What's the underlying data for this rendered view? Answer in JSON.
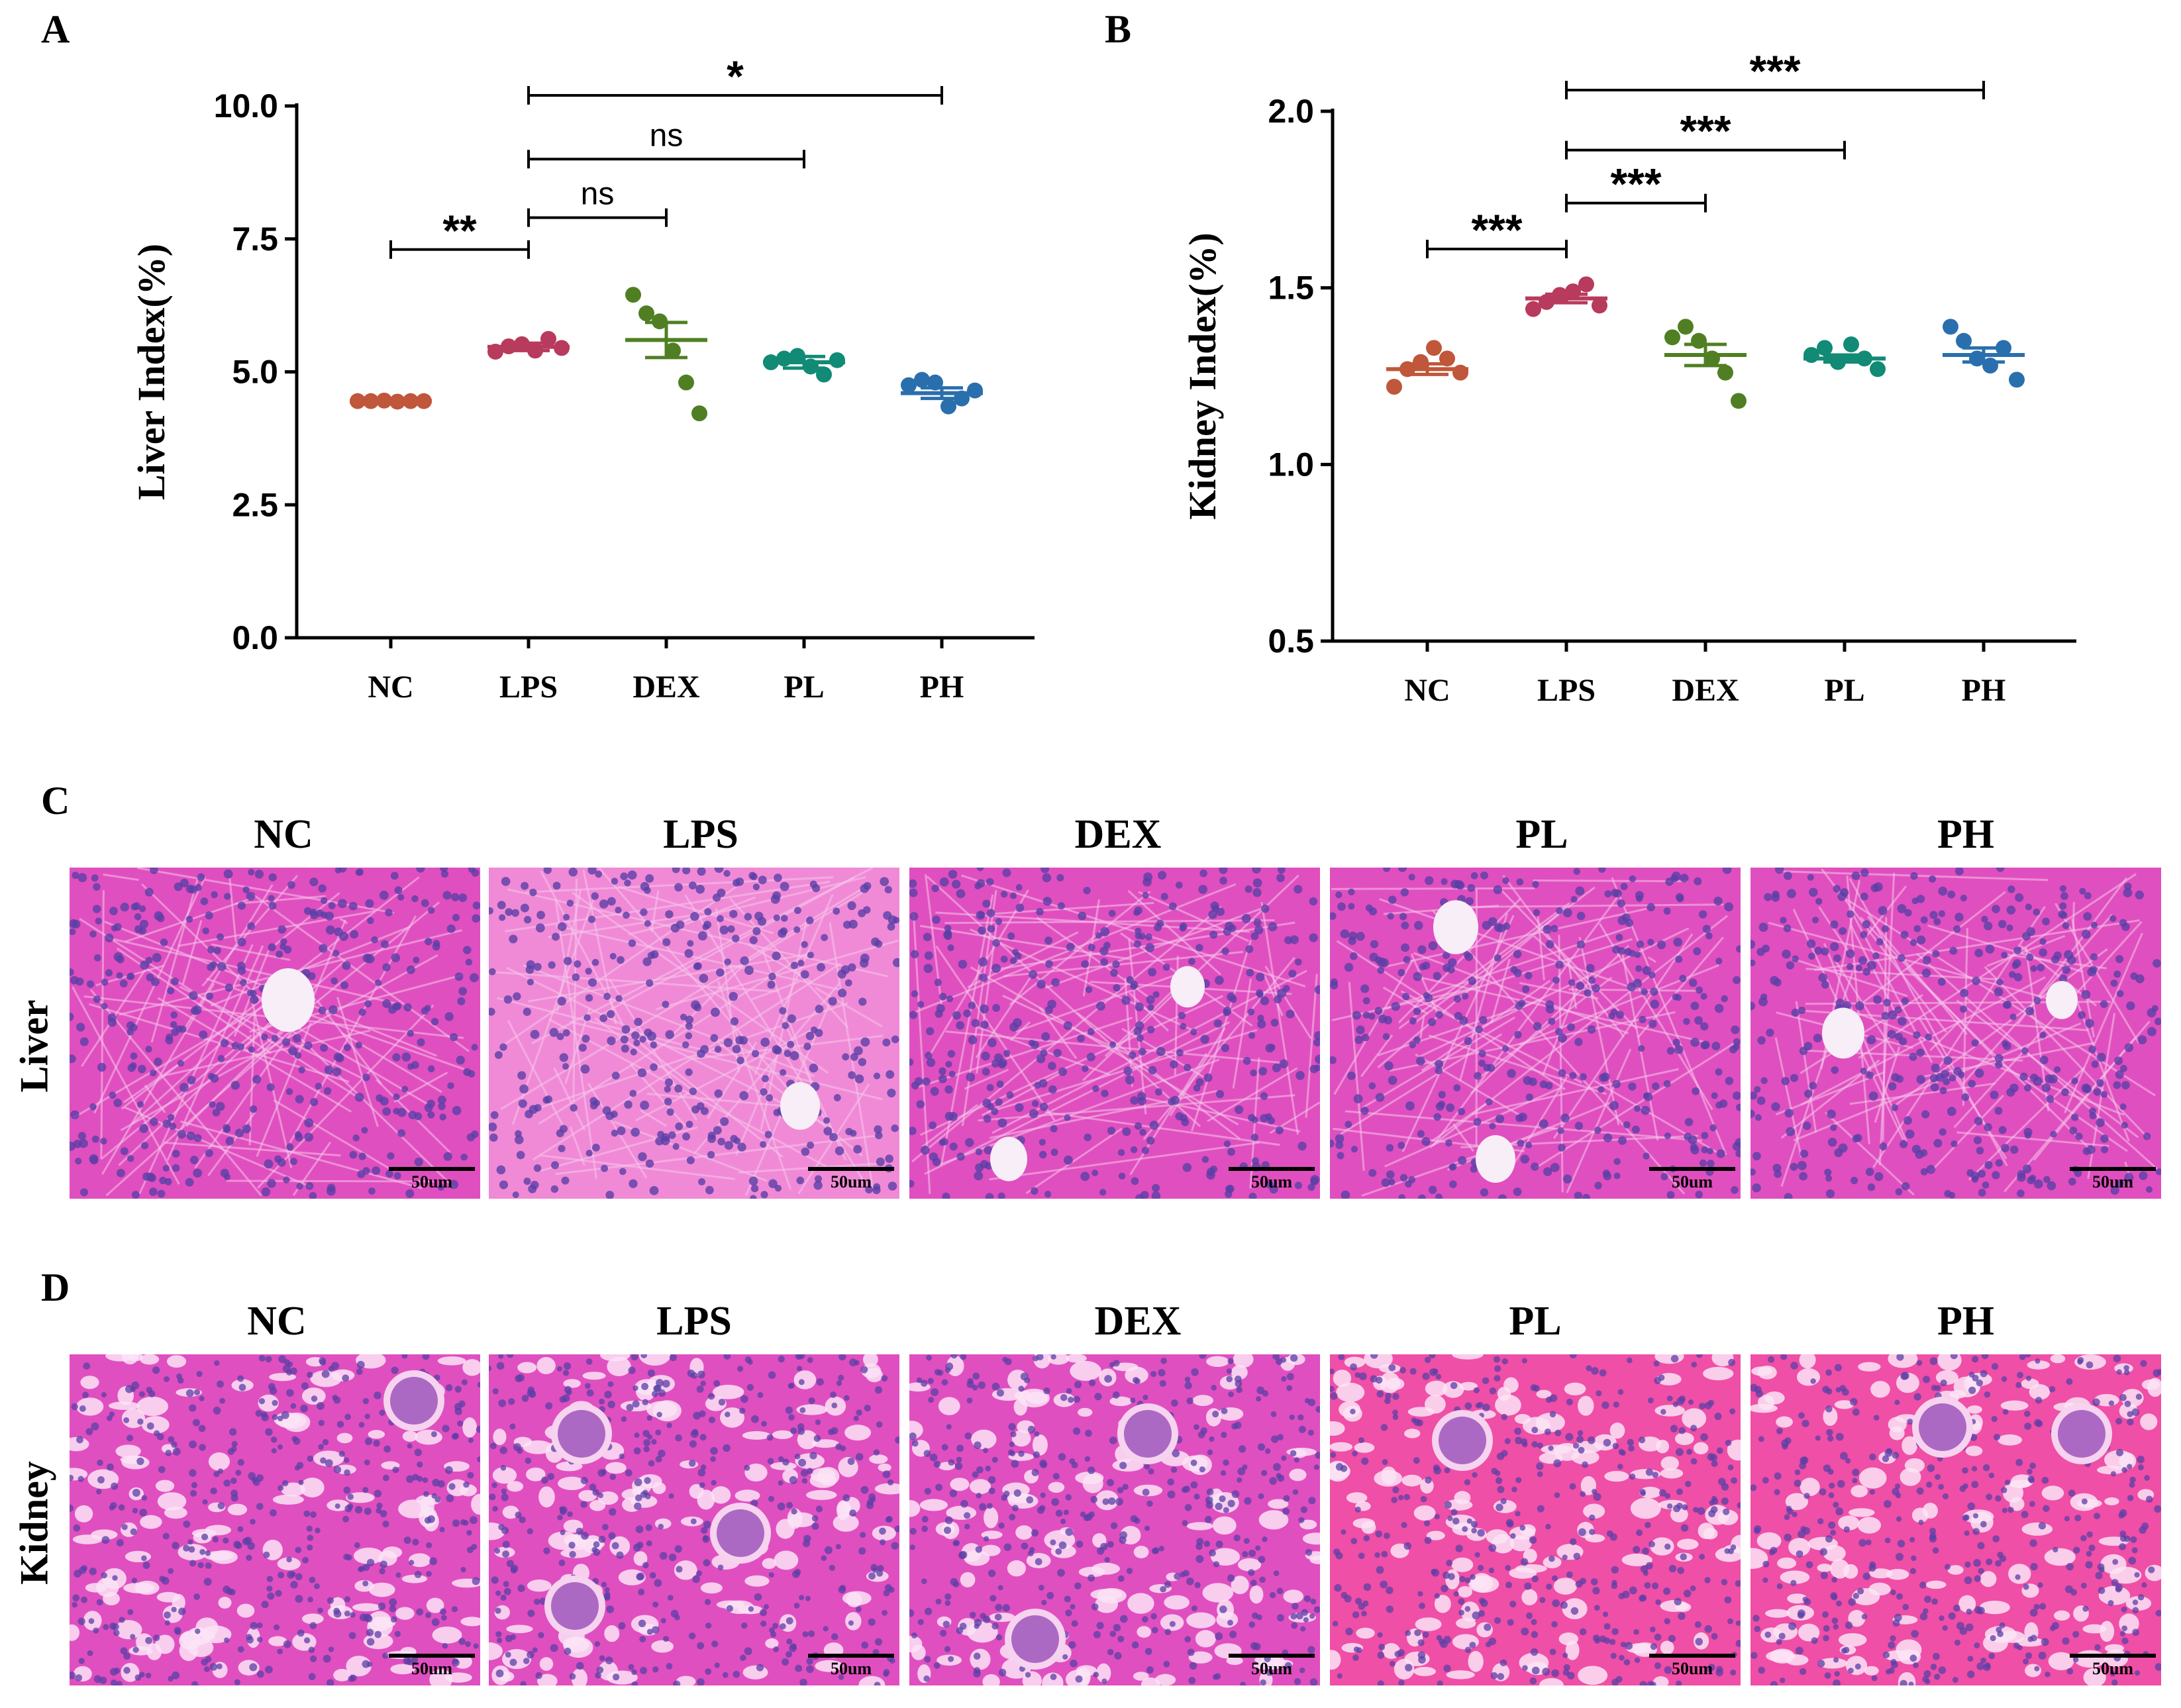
{
  "panels": {
    "a": "A",
    "b": "B",
    "c": "C",
    "d": "D"
  },
  "chart_data": [
    {
      "type": "scatter",
      "panel": "A",
      "ylabel": "Liver Index(%)",
      "xlabel": "",
      "ylim": [
        0,
        10
      ],
      "yticks": [
        0,
        2.5,
        5,
        7.5,
        10
      ],
      "ytick_labels": [
        "0.0",
        "2.5",
        "5.0",
        "7.5",
        "10.0"
      ],
      "categories": [
        "NC",
        "LPS",
        "DEX",
        "PL",
        "PH"
      ],
      "colors": [
        "#c0563a",
        "#b83a5c",
        "#4f7f22",
        "#118a76",
        "#2a6fad"
      ],
      "means": [
        4.45,
        5.47,
        5.6,
        5.18,
        4.6
      ],
      "sems": [
        0.02,
        0.07,
        0.33,
        0.11,
        0.1
      ],
      "points": [
        [
          4.45,
          4.45,
          4.46,
          4.44,
          4.45,
          4.45
        ],
        [
          5.38,
          5.48,
          5.52,
          5.4,
          5.62,
          5.45
        ],
        [
          6.45,
          6.1,
          5.95,
          5.4,
          4.8,
          4.22
        ],
        [
          5.18,
          5.25,
          5.3,
          5.1,
          4.95,
          5.22
        ],
        [
          4.75,
          4.85,
          4.8,
          4.35,
          4.5,
          4.65
        ]
      ],
      "comparisons": [
        {
          "from": "NC",
          "to": "LPS",
          "label": "**",
          "y": 7.3
        },
        {
          "from": "LPS",
          "to": "DEX",
          "label": "ns",
          "y": 7.9
        },
        {
          "from": "LPS",
          "to": "PL",
          "label": "ns",
          "y": 9.0
        },
        {
          "from": "LPS",
          "to": "PH",
          "label": "*",
          "y": 10.2
        }
      ]
    },
    {
      "type": "scatter",
      "panel": "B",
      "ylabel": "Kidney Index(%)",
      "xlabel": "",
      "ylim": [
        0.5,
        2.0
      ],
      "yticks": [
        0.5,
        1.0,
        1.5,
        2.0
      ],
      "ytick_labels": [
        "0.5",
        "1.0",
        "1.5",
        "2.0"
      ],
      "categories": [
        "NC",
        "LPS",
        "DEX",
        "PL",
        "PH"
      ],
      "colors": [
        "#c0563a",
        "#b83a5c",
        "#4f7f22",
        "#118a76",
        "#2a6fad"
      ],
      "means": [
        1.27,
        1.47,
        1.31,
        1.3,
        1.31
      ],
      "sems": [
        0.015,
        0.012,
        0.03,
        0.01,
        0.02
      ],
      "points": [
        [
          1.22,
          1.27,
          1.29,
          1.33,
          1.3,
          1.26
        ],
        [
          1.44,
          1.46,
          1.48,
          1.49,
          1.51,
          1.45
        ],
        [
          1.36,
          1.39,
          1.35,
          1.3,
          1.26,
          1.18
        ],
        [
          1.31,
          1.33,
          1.29,
          1.34,
          1.3,
          1.27
        ],
        [
          1.39,
          1.35,
          1.3,
          1.28,
          1.33,
          1.24
        ]
      ],
      "comparisons": [
        {
          "from": "NC",
          "to": "LPS",
          "label": "***",
          "y": 1.61
        },
        {
          "from": "LPS",
          "to": "DEX",
          "label": "***",
          "y": 1.74
        },
        {
          "from": "LPS",
          "to": "PL",
          "label": "***",
          "y": 1.89
        },
        {
          "from": "LPS",
          "to": "PH",
          "label": "***",
          "y": 2.06
        }
      ]
    }
  ],
  "histology": {
    "liver_label": "Liver",
    "kidney_label": "Kidney",
    "groups": [
      "NC",
      "LPS",
      "DEX",
      "PL",
      "PH"
    ],
    "scale": "50um",
    "colors": {
      "tissue": "#e04fbf",
      "tissue_light": "#f08ad6",
      "nuclei": "#5b3fa6",
      "lumen": "#f7eef8"
    }
  }
}
